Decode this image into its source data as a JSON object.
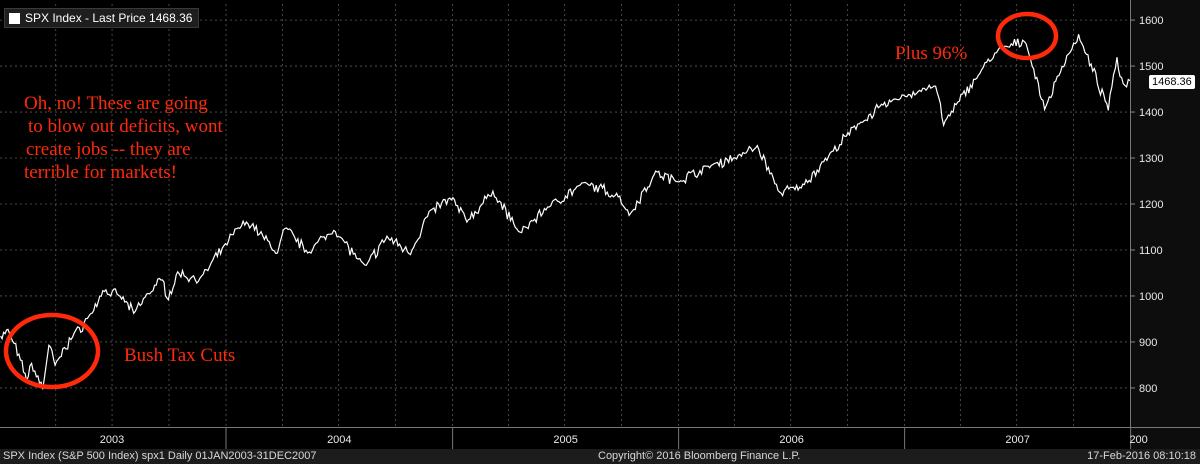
{
  "legend": {
    "label": "SPX Index - Last Price 1468.36",
    "swatch_color": "#ffffff"
  },
  "footer": {
    "left": "SPX Index (S&P 500 Index) spx1  Daily 01JAN2003-31DEC2007",
    "center": "Copyright© 2016 Bloomberg Finance L.P.",
    "right": "17-Feb-2016 08:10:18"
  },
  "annotations": {
    "deficits_note": [
      "Oh, no! These are going",
      "to blow out deficits, wont",
      "create jobs -- they are",
      "terrible for markets!"
    ],
    "tax_cuts": "Bush Tax Cuts",
    "gain": "Plus 96%",
    "color": "#ff2a0a"
  },
  "last_price_label": "1468.36",
  "chart_data": {
    "type": "line",
    "title": "",
    "xlabel": "",
    "ylabel": "",
    "line_color": "#ffffff",
    "background": "#000000",
    "grid": true,
    "y_ticks": [
      800,
      900,
      1000,
      1100,
      1200,
      1300,
      1400,
      1500,
      1600
    ],
    "x_tick_labels": [
      "2003",
      "2004",
      "2005",
      "2006",
      "2007",
      "200"
    ],
    "ylim": [
      715,
      1635
    ],
    "xlim": [
      "2003-01-01",
      "2007-12-31"
    ],
    "series": [
      {
        "values": [
          [
            "2003-01-02",
            909
          ],
          [
            "2003-01-14",
            926
          ],
          [
            "2003-02-03",
            860
          ],
          [
            "2003-02-13",
            817
          ],
          [
            "2003-02-21",
            850
          ],
          [
            "2003-03-11",
            800
          ],
          [
            "2003-03-21",
            895
          ],
          [
            "2003-03-31",
            848
          ],
          [
            "2003-04-15",
            885
          ],
          [
            "2003-05-01",
            916
          ],
          [
            "2003-05-30",
            963
          ],
          [
            "2003-06-16",
            1011
          ],
          [
            "2003-07-14",
            1000
          ],
          [
            "2003-08-05",
            965
          ],
          [
            "2003-09-18",
            1039
          ],
          [
            "2003-09-30",
            996
          ],
          [
            "2003-10-15",
            1050
          ],
          [
            "2003-11-20",
            1035
          ],
          [
            "2003-12-31",
            1111
          ],
          [
            "2004-01-26",
            1155
          ],
          [
            "2004-02-11",
            1157
          ],
          [
            "2004-03-24",
            1092
          ],
          [
            "2004-04-05",
            1150
          ],
          [
            "2004-05-12",
            1095
          ],
          [
            "2004-06-23",
            1144
          ],
          [
            "2004-08-12",
            1063
          ],
          [
            "2004-09-17",
            1128
          ],
          [
            "2004-10-25",
            1094
          ],
          [
            "2004-11-24",
            1182
          ],
          [
            "2004-12-30",
            1213
          ],
          [
            "2005-01-24",
            1163
          ],
          [
            "2005-03-07",
            1225
          ],
          [
            "2005-04-20",
            1137
          ],
          [
            "2005-06-06",
            1197
          ],
          [
            "2005-08-03",
            1245
          ],
          [
            "2005-09-28",
            1216
          ],
          [
            "2005-10-13",
            1176
          ],
          [
            "2005-11-25",
            1268
          ],
          [
            "2005-12-30",
            1248
          ],
          [
            "2006-02-15",
            1280
          ],
          [
            "2006-04-20",
            1311
          ],
          [
            "2006-05-08",
            1326
          ],
          [
            "2006-06-13",
            1224
          ],
          [
            "2006-07-18",
            1236
          ],
          [
            "2006-08-31",
            1304
          ],
          [
            "2006-10-25",
            1382
          ],
          [
            "2006-12-15",
            1427
          ],
          [
            "2007-02-20",
            1459
          ],
          [
            "2007-03-05",
            1374
          ],
          [
            "2007-04-30",
            1482
          ],
          [
            "2007-06-01",
            1536
          ],
          [
            "2007-07-16",
            1553
          ],
          [
            "2007-08-15",
            1406
          ],
          [
            "2007-09-20",
            1520
          ],
          [
            "2007-10-09",
            1565
          ],
          [
            "2007-11-26",
            1407
          ],
          [
            "2007-12-10",
            1515
          ],
          [
            "2007-12-20",
            1460
          ],
          [
            "2007-12-31",
            1468.36
          ]
        ]
      }
    ]
  }
}
